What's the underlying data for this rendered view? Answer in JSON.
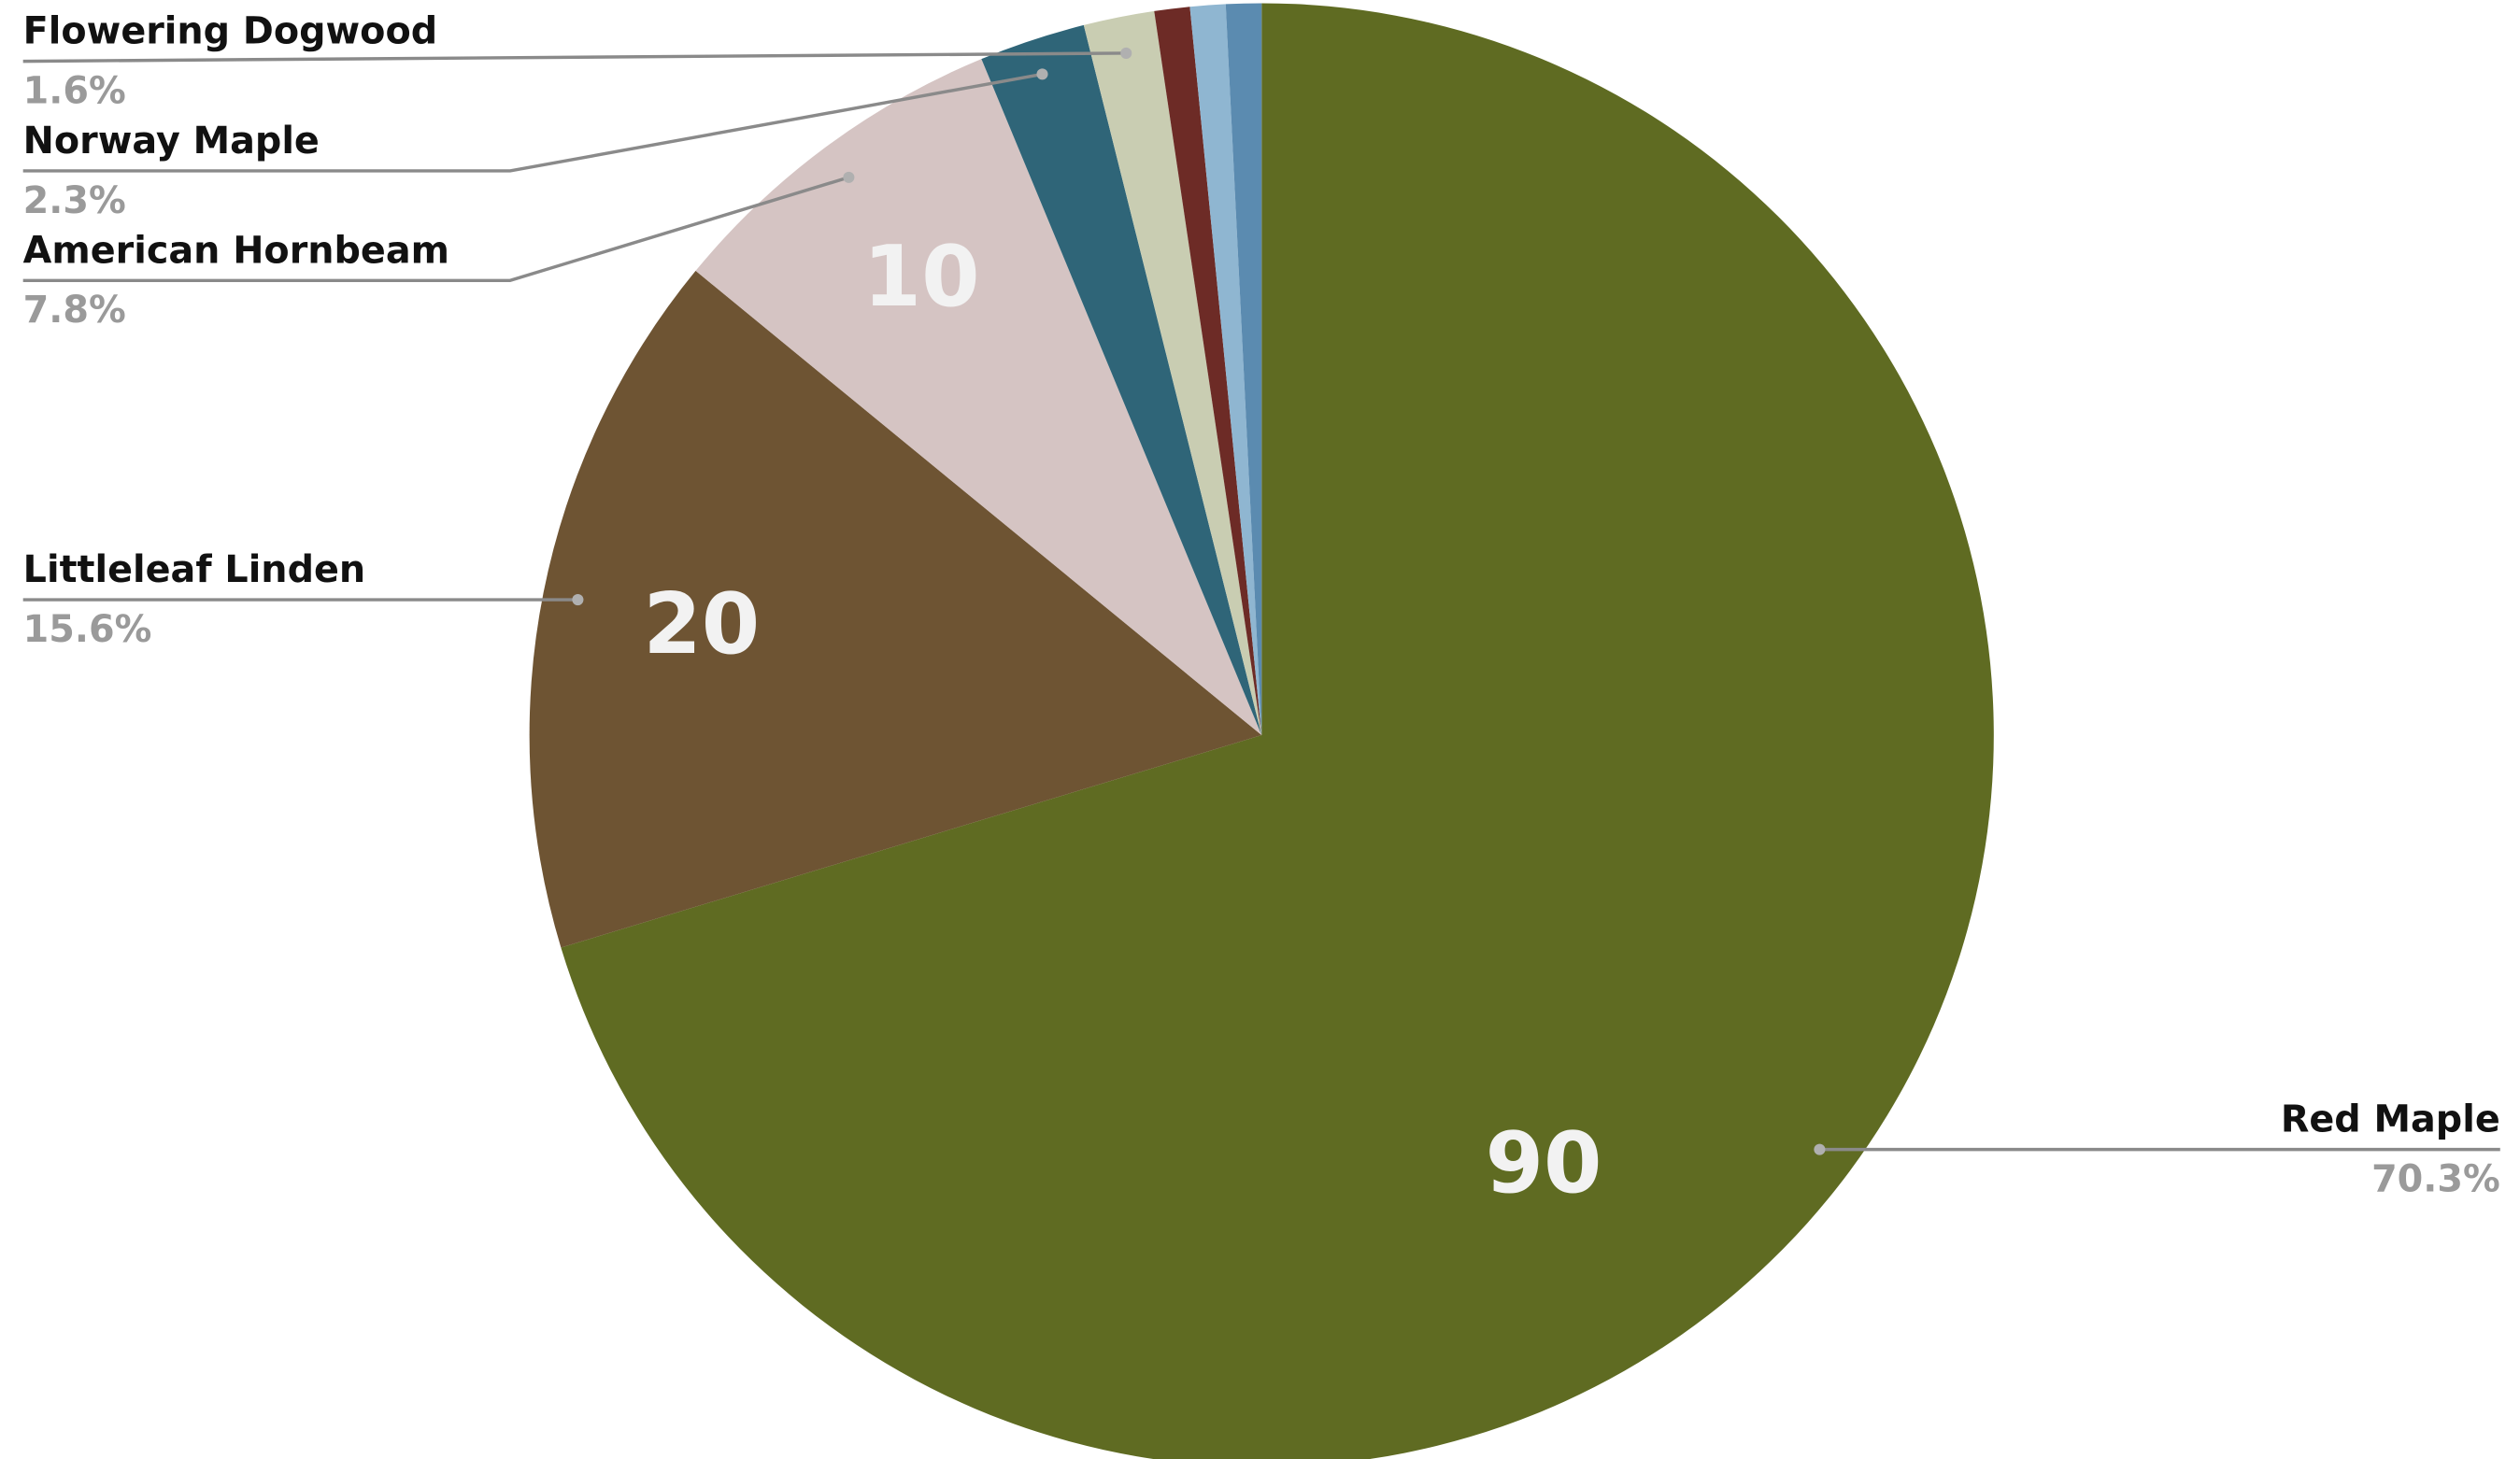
{
  "chart_data": {
    "type": "pie",
    "categories": [
      "Red Maple",
      "Littleleaf Linden",
      "American Hornbeam",
      "Norway Maple",
      "Flowering Dogwood",
      null,
      null,
      null
    ],
    "values": [
      90,
      20,
      10,
      3,
      2,
      1,
      1,
      1
    ],
    "percent_labels": [
      "70.3%",
      "15.6%",
      "7.8%",
      "2.3%",
      "1.6%",
      null,
      null,
      null
    ],
    "colors": [
      "#5f6b22",
      "#6e5433",
      "#d5c4c3",
      "#2f6578",
      "#c9cdb2",
      "#6d2b26",
      "#8fb6d1",
      "#5b8bb0"
    ]
  }
}
